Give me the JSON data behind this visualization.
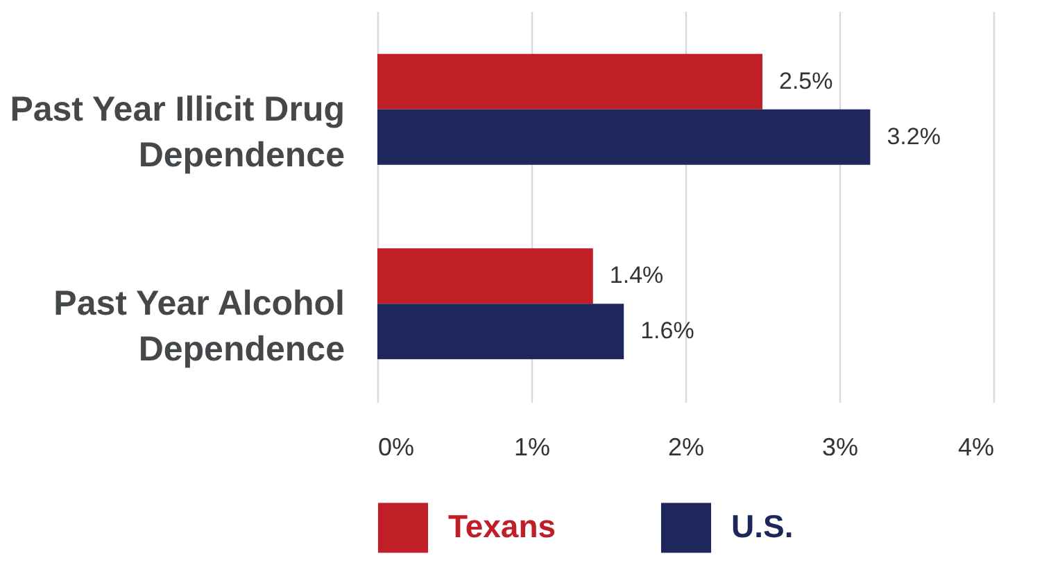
{
  "chart_data": {
    "type": "bar",
    "orientation": "horizontal",
    "categories": [
      "Past Year Illicit Drug Dependence",
      "Past Year Alcohol Dependence"
    ],
    "series": [
      {
        "name": "Texans",
        "color": "#c01f27",
        "values": [
          2.5,
          1.4
        ],
        "value_labels": [
          "2.5%",
          "1.4%"
        ]
      },
      {
        "name": "U.S.",
        "color": "#1e275b",
        "values": [
          3.2,
          1.6
        ],
        "value_labels": [
          "3.2%",
          "1.6%"
        ]
      }
    ],
    "xlim": [
      0,
      4
    ],
    "xticks": [
      {
        "value": 0,
        "label": "0%"
      },
      {
        "value": 1,
        "label": "1%"
      },
      {
        "value": 2,
        "label": "2%"
      },
      {
        "value": 3,
        "label": "3%"
      },
      {
        "value": 4,
        "label": "4%"
      }
    ],
    "grid": "x",
    "legend": "bottom"
  }
}
